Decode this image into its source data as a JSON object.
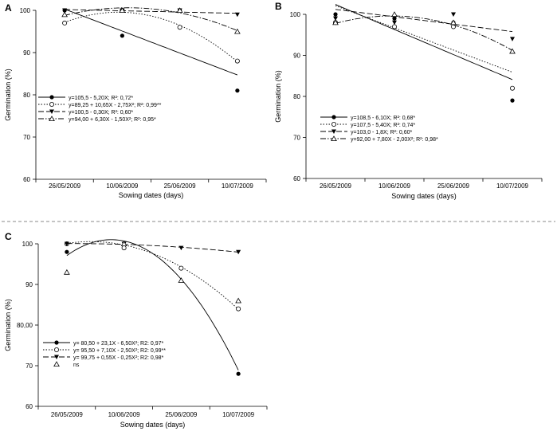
{
  "chart_data": [
    {
      "id": "A",
      "type": "scatter",
      "panel_label": "A",
      "categories": [
        "26/05/2009",
        "10/06/2009",
        "25/06/2009",
        "10/07/2009"
      ],
      "xlabel": "Sowing dates (days)",
      "ylabel": "Germination (%)",
      "ylim": [
        60,
        100
      ],
      "yticks": [
        "60",
        "70",
        "80",
        "90",
        "100"
      ],
      "series": [
        {
          "name": "y=105,5 - 5,20X; R²: 0,72*",
          "marker": "filled-circle",
          "line": "solid",
          "values": [
            100,
            94,
            100,
            81
          ],
          "fit": [
            100.3,
            95.1,
            89.9,
            84.7
          ]
        },
        {
          "name": "y=89,25 + 10,65X - 2,75X²; R²: 0,99**",
          "marker": "open-circle",
          "line": "dotted",
          "values": [
            97,
            100,
            96,
            88
          ],
          "fit": [
            97.15,
            99.55,
            96.45,
            87.85
          ]
        },
        {
          "name": "y=100,5 - 0,30X; R²: 0,60*",
          "marker": "filled-triangle-down",
          "line": "dashed",
          "values": [
            100,
            100,
            100,
            99
          ],
          "fit": [
            100.2,
            99.9,
            99.6,
            99.3
          ]
        },
        {
          "name": "y=94,00 + 6,30X - 1,50X²; R²: 0,95*",
          "marker": "open-triangle",
          "line": "dash-dot",
          "values": [
            99,
            100,
            100,
            95
          ],
          "fit": [
            98.8,
            100.6,
            99.4,
            95.2
          ]
        }
      ]
    },
    {
      "id": "B",
      "type": "scatter",
      "panel_label": "B",
      "categories": [
        "26/05/2009",
        "10/06/2009",
        "25/06/2009",
        "10/07/2009"
      ],
      "xlabel": "Sowing dates (days)",
      "ylabel": "Germination (%)",
      "ylim": [
        60,
        100
      ],
      "yticks": [
        "60",
        "70",
        "80",
        "90",
        "100"
      ],
      "series": [
        {
          "name": "y=108,5 - 6,10X; R²: 0,68*",
          "marker": "filled-circle",
          "line": "solid",
          "values": [
            100,
            99,
            98,
            79
          ],
          "fit": [
            102.4,
            96.3,
            90.2,
            84.1
          ]
        },
        {
          "name": "y=107,5 - 5,40X; R²: 0,74*",
          "marker": "open-circle",
          "line": "dotted",
          "values": [
            98,
            97,
            97,
            82
          ],
          "fit": [
            102.1,
            96.7,
            91.3,
            85.9
          ]
        },
        {
          "name": "y=103,0 - 1,8X; R²: 0,60*",
          "marker": "filled-triangle-down",
          "line": "dashed",
          "values": [
            99,
            98,
            100,
            94
          ],
          "fit": [
            101.2,
            99.4,
            97.6,
            95.8
          ]
        },
        {
          "name": "y=92,00 + 7,80X - 2,00X²; R²: 0,98*",
          "marker": "open-triangle",
          "line": "dash-dot",
          "values": [
            98,
            100,
            98,
            91
          ],
          "fit": [
            97.8,
            99.6,
            97.4,
            91.2
          ]
        }
      ]
    },
    {
      "id": "C",
      "type": "scatter",
      "panel_label": "C",
      "categories": [
        "26/05/2009",
        "10/06/2009",
        "25/06/2009",
        "10/07/2009"
      ],
      "xlabel": "Sowing dates (days)",
      "ylabel": "Germination (%)",
      "ylim": [
        60,
        100
      ],
      "yticks": [
        "60",
        "70",
        "80,00",
        "90",
        "100"
      ],
      "series": [
        {
          "name": "y= 80,50 + 23,1X - 6,50X²; R2: 0,97*",
          "marker": "filled-circle",
          "line": "solid",
          "values": [
            98,
            99,
            94,
            68
          ],
          "fit": [
            97.1,
            100.7,
            91.3,
            68.9
          ]
        },
        {
          "name": "y= 95,50 + 7,10X - 2,50X²; R2: 0,99**",
          "marker": "open-circle",
          "line": "dotted",
          "values": [
            100,
            99,
            94,
            84
          ],
          "fit": [
            100.1,
            99.7,
            94.3,
            83.9
          ]
        },
        {
          "name": "y= 99,75 + 0,55X - 0,25X²; R2: 0,98*",
          "marker": "filled-triangle-down",
          "line": "dashed",
          "values": [
            100,
            100,
            99,
            98
          ],
          "fit": [
            100.05,
            99.85,
            99.15,
            97.95
          ]
        },
        {
          "name": "ns",
          "marker": "open-triangle",
          "line": "none",
          "values": [
            93,
            100,
            91,
            86
          ],
          "fit": null
        }
      ]
    }
  ]
}
